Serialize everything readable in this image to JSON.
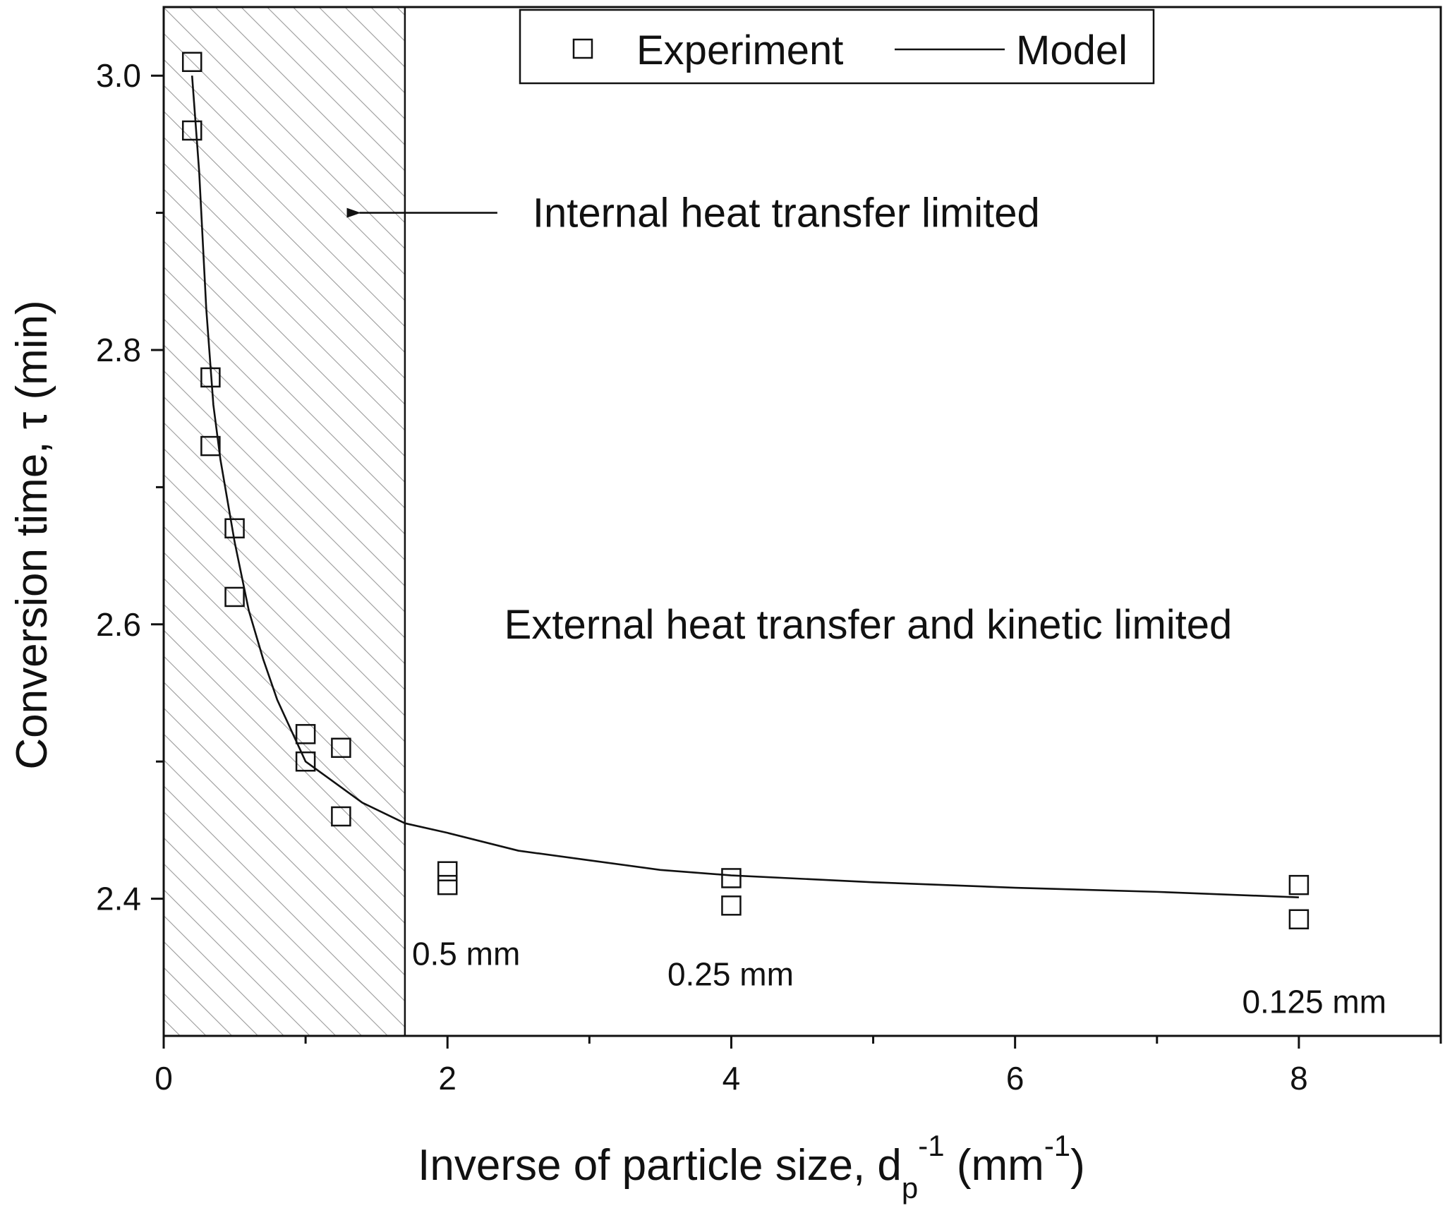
{
  "chart_data": {
    "type": "scatter",
    "xlabel": {
      "main": "Inverse of particle size, d",
      "sub": "p",
      "sup": "-1",
      "unit_open": " (mm",
      "unit_sup": "-1",
      "unit_close": ")"
    },
    "ylabel": "Conversion time, τ (min)",
    "xlim": [
      0,
      9
    ],
    "ylim": [
      2.3,
      3.05
    ],
    "x_major_ticks": [
      0,
      2,
      4,
      6,
      8
    ],
    "x_minor_ticks": [
      1,
      3,
      5,
      7,
      9
    ],
    "x_tick_labels": [
      "0",
      "2",
      "4",
      "6",
      "8"
    ],
    "y_major_ticks": [
      2.4,
      2.6,
      2.8,
      3.0
    ],
    "y_minor_ticks": [
      2.5,
      2.7,
      2.9
    ],
    "y_tick_labels": [
      "2.4",
      "2.6",
      "2.8",
      "3.0"
    ],
    "grid": false,
    "legend": {
      "position": "top-center",
      "entries": [
        "Experiment",
        "Model"
      ]
    },
    "shaded_region": {
      "x_range": [
        0,
        1.7
      ],
      "pattern": "diagonal-hatch"
    },
    "series": [
      {
        "name": "Experiment",
        "kind": "markers",
        "marker": "open-square",
        "points": [
          [
            0.2,
            3.01
          ],
          [
            0.2,
            2.96
          ],
          [
            0.33,
            2.78
          ],
          [
            0.33,
            2.73
          ],
          [
            0.5,
            2.67
          ],
          [
            0.5,
            2.62
          ],
          [
            1.0,
            2.52
          ],
          [
            1.0,
            2.5
          ],
          [
            1.25,
            2.51
          ],
          [
            1.25,
            2.46
          ],
          [
            2.0,
            2.42
          ],
          [
            2.0,
            2.41
          ],
          [
            4.0,
            2.415
          ],
          [
            4.0,
            2.395
          ],
          [
            8.0,
            2.41
          ],
          [
            8.0,
            2.385
          ]
        ]
      },
      {
        "name": "Model",
        "kind": "line",
        "points": [
          [
            0.2,
            3.0
          ],
          [
            0.25,
            2.93
          ],
          [
            0.3,
            2.83
          ],
          [
            0.35,
            2.76
          ],
          [
            0.4,
            2.72
          ],
          [
            0.5,
            2.66
          ],
          [
            0.6,
            2.61
          ],
          [
            0.7,
            2.575
          ],
          [
            0.8,
            2.545
          ],
          [
            1.0,
            2.5
          ],
          [
            1.2,
            2.485
          ],
          [
            1.4,
            2.47
          ],
          [
            1.7,
            2.455
          ],
          [
            2.0,
            2.448
          ],
          [
            2.5,
            2.435
          ],
          [
            3.0,
            2.428
          ],
          [
            3.5,
            2.421
          ],
          [
            4.0,
            2.417
          ],
          [
            5.0,
            2.412
          ],
          [
            6.0,
            2.408
          ],
          [
            7.0,
            2.405
          ],
          [
            8.0,
            2.401
          ]
        ]
      }
    ],
    "annotations": [
      {
        "text": "Internal heat transfer limited",
        "x": 2.6,
        "y": 2.9,
        "arrow_to": [
          1.38,
          2.9
        ]
      },
      {
        "text": "External heat transfer and kinetic limited",
        "x": 2.4,
        "y": 2.6
      }
    ],
    "point_labels": [
      {
        "text": "0.5 mm",
        "x": 1.75,
        "y": 2.36
      },
      {
        "text": "0.25 mm",
        "x": 3.55,
        "y": 2.345
      },
      {
        "text": "0.125 mm",
        "x": 7.6,
        "y": 2.325
      }
    ]
  }
}
